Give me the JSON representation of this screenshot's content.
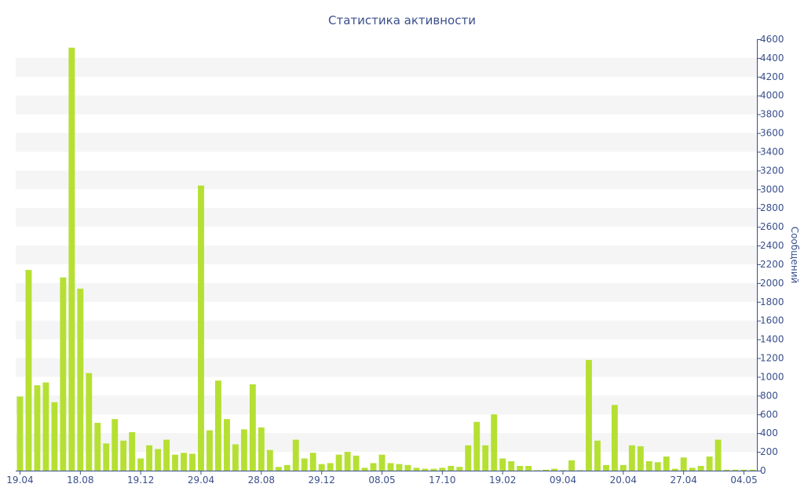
{
  "chart_data": {
    "type": "bar",
    "title": "Статистика активности",
    "xlabel": "",
    "ylabel": "Сообщений",
    "y_axis_side": "right",
    "ylim": [
      0,
      4600
    ],
    "y_ticks": [
      0,
      200,
      400,
      600,
      800,
      1000,
      1200,
      1400,
      1600,
      1800,
      2000,
      2200,
      2400,
      2600,
      2800,
      3000,
      3200,
      3400,
      3600,
      3800,
      4000,
      4200,
      4400,
      4600
    ],
    "x_tick_labels": [
      {
        "index": 0,
        "label": "19.04"
      },
      {
        "index": 7,
        "label": "18.08"
      },
      {
        "index": 14,
        "label": "19.12"
      },
      {
        "index": 21,
        "label": "29.04"
      },
      {
        "index": 28,
        "label": "28.08"
      },
      {
        "index": 35,
        "label": "29.12"
      },
      {
        "index": 42,
        "label": "08.05"
      },
      {
        "index": 49,
        "label": "17.10"
      },
      {
        "index": 56,
        "label": "19.02"
      },
      {
        "index": 63,
        "label": "09.04"
      },
      {
        "index": 70,
        "label": "20.04"
      },
      {
        "index": 77,
        "label": "27.04"
      },
      {
        "index": 84,
        "label": "04.05"
      }
    ],
    "bar_color": "#b5e033",
    "band_color": "#f5f5f5",
    "text_color": "#3a4f8c",
    "values": [
      790,
      2140,
      910,
      940,
      730,
      2060,
      4510,
      1940,
      1040,
      510,
      290,
      550,
      320,
      410,
      130,
      270,
      230,
      330,
      170,
      190,
      180,
      3040,
      430,
      960,
      550,
      280,
      440,
      920,
      460,
      220,
      40,
      60,
      330,
      130,
      190,
      70,
      80,
      170,
      200,
      160,
      30,
      80,
      170,
      80,
      70,
      60,
      30,
      20,
      20,
      30,
      50,
      40,
      270,
      520,
      270,
      600,
      130,
      100,
      50,
      50,
      5,
      10,
      20,
      5,
      110,
      5,
      1180,
      320,
      60,
      700,
      60,
      270,
      260,
      100,
      90,
      150,
      20,
      140,
      30,
      50,
      150,
      330,
      10,
      10,
      10,
      10
    ]
  }
}
